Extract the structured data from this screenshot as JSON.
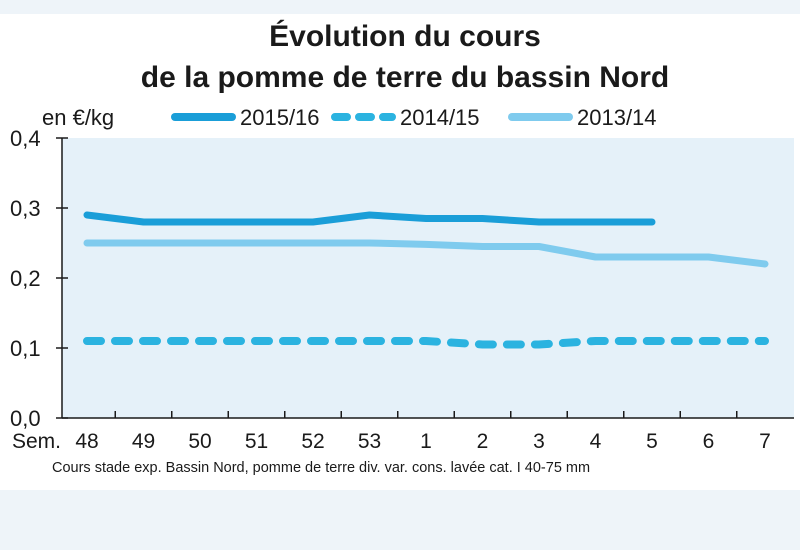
{
  "chart_data": {
    "type": "line",
    "title_line1": "Évolution du cours",
    "title_line2": "de la pomme de terre du bassin Nord",
    "ylabel": "en €/kg",
    "xlabel": "Sem.",
    "source_note": "Cours stade exp. Bassin Nord, pomme de terre div. var. cons. lavée cat. I 40-75 mm",
    "categories": [
      "48",
      "49",
      "50",
      "51",
      "52",
      "53",
      "1",
      "2",
      "3",
      "4",
      "5",
      "6",
      "7"
    ],
    "y_ticks": [
      "0,0",
      "0,1",
      "0,2",
      "0,3",
      "0,4"
    ],
    "ylim": [
      0,
      0.4
    ],
    "grid": false,
    "legend_position": "top",
    "plot_background": "#e5f1f9",
    "series": [
      {
        "name": "2015/16",
        "color": "#1a9ed8",
        "style": "solid",
        "values": [
          0.29,
          0.28,
          0.28,
          0.28,
          0.28,
          0.29,
          0.285,
          0.285,
          0.28,
          0.28,
          0.28,
          null,
          null
        ]
      },
      {
        "name": "2014/15",
        "color": "#2bb3e0",
        "style": "dashed",
        "values": [
          0.11,
          0.11,
          0.11,
          0.11,
          0.11,
          0.11,
          0.11,
          0.105,
          0.105,
          0.11,
          0.11,
          0.11,
          0.11
        ]
      },
      {
        "name": "2013/14",
        "color": "#7fcbee",
        "style": "solid",
        "values": [
          0.25,
          0.25,
          0.25,
          0.25,
          0.25,
          0.25,
          0.248,
          0.245,
          0.245,
          0.23,
          0.23,
          0.23,
          0.22
        ]
      }
    ]
  }
}
